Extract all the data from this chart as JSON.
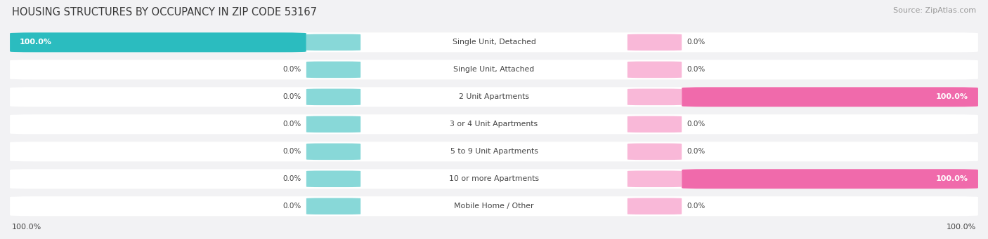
{
  "title": "HOUSING STRUCTURES BY OCCUPANCY IN ZIP CODE 53167",
  "source": "Source: ZipAtlas.com",
  "categories": [
    "Single Unit, Detached",
    "Single Unit, Attached",
    "2 Unit Apartments",
    "3 or 4 Unit Apartments",
    "5 to 9 Unit Apartments",
    "10 or more Apartments",
    "Mobile Home / Other"
  ],
  "owner_values": [
    100.0,
    0.0,
    0.0,
    0.0,
    0.0,
    0.0,
    0.0
  ],
  "renter_values": [
    0.0,
    0.0,
    100.0,
    0.0,
    0.0,
    100.0,
    0.0
  ],
  "owner_color": "#2bbcbf",
  "renter_color": "#f06aab",
  "owner_stub_color": "#88d8d8",
  "renter_stub_color": "#f9b8d8",
  "row_bg_color": "#e8e8ea",
  "fig_bg_color": "#f2f2f4",
  "title_color": "#383838",
  "source_color": "#999999",
  "label_dark": "#444444",
  "label_white": "#ffffff",
  "figwidth": 14.06,
  "figheight": 3.41
}
